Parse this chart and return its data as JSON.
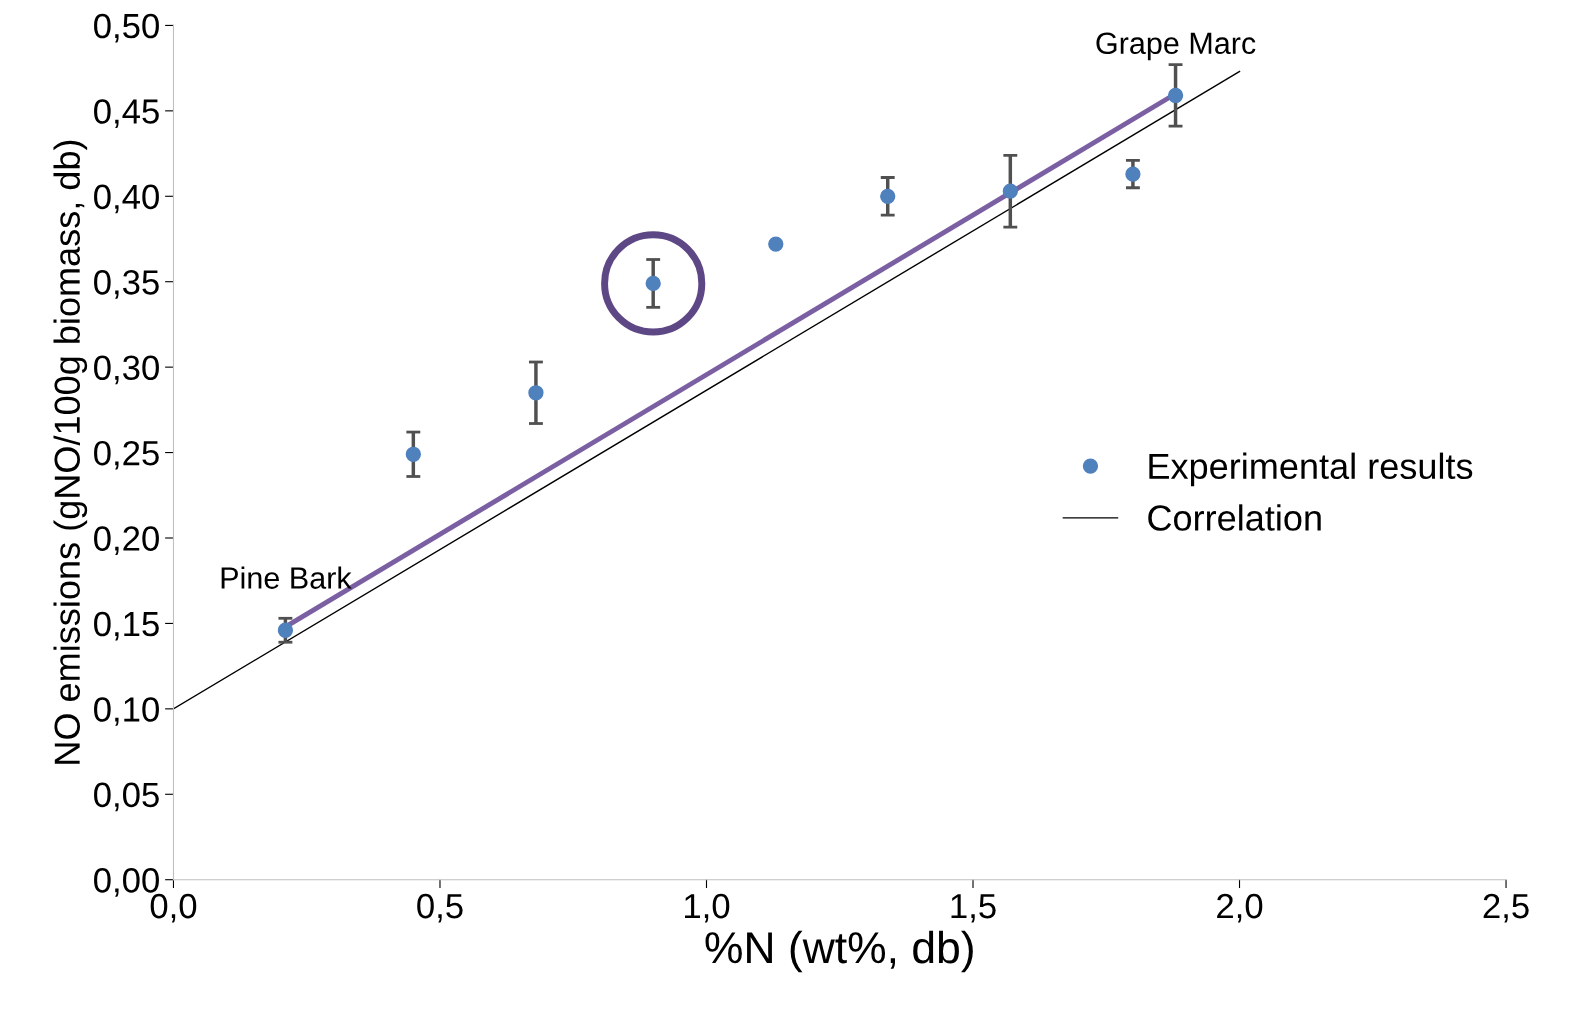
{
  "chart_data": {
    "type": "scatter",
    "xlabel": "%N (wt%, db)",
    "ylabel": "NO emissions (gNO/100g biomass, db)",
    "xlim": [
      0.0,
      2.5
    ],
    "xticks": [
      {
        "value": 0.0,
        "label": "0,0"
      },
      {
        "value": 0.5,
        "label": "0,5"
      },
      {
        "value": 1.0,
        "label": "1,0"
      },
      {
        "value": 1.5,
        "label": "1,5"
      },
      {
        "value": 2.0,
        "label": "2,0"
      },
      {
        "value": 2.5,
        "label": "2,5"
      }
    ],
    "ylim": [
      0.0,
      0.5
    ],
    "yticks": [
      {
        "value": 0.0,
        "label": "0,00"
      },
      {
        "value": 0.05,
        "label": "0,05"
      },
      {
        "value": 0.1,
        "label": "0,10"
      },
      {
        "value": 0.15,
        "label": "0,15"
      },
      {
        "value": 0.2,
        "label": "0,20"
      },
      {
        "value": 0.25,
        "label": "0,25"
      },
      {
        "value": 0.3,
        "label": "0,30"
      },
      {
        "value": 0.35,
        "label": "0,35"
      },
      {
        "value": 0.4,
        "label": "0,40"
      },
      {
        "value": 0.45,
        "label": "0,45"
      },
      {
        "value": 0.5,
        "label": "0,50"
      }
    ],
    "grid": false,
    "legend": "right",
    "series": [
      {
        "name": "Experimental results",
        "marker": "circle",
        "color": "#4f81bd",
        "x": [
          0.21,
          0.45,
          0.68,
          0.9,
          1.13,
          1.34,
          1.57,
          1.8,
          1.88
        ],
        "values": [
          0.146,
          0.249,
          0.285,
          0.349,
          0.372,
          0.4,
          0.403,
          0.413,
          0.459
        ],
        "errors": [
          0.007,
          0.013,
          0.018,
          0.014,
          null,
          0.011,
          0.021,
          0.008,
          0.018
        ]
      },
      {
        "name": "Correlation",
        "type": "line",
        "color": "#000000",
        "x": [
          0.0,
          2.0
        ],
        "values": [
          0.1,
          0.473
        ]
      },
      {
        "type": "line",
        "color": "#7b5fa3",
        "x": [
          0.21,
          1.88
        ],
        "values": [
          0.148,
          0.46
        ]
      },
      {
        "marker": "circle",
        "color": "#5e4785",
        "x": [
          0.9
        ],
        "values": [
          0.349
        ]
      }
    ],
    "annotations": [
      {
        "text": "Pine Bark",
        "x": 0.21,
        "y": 0.146
      },
      {
        "text": "Grape Marc",
        "x": 1.88,
        "y": 0.459
      }
    ]
  }
}
